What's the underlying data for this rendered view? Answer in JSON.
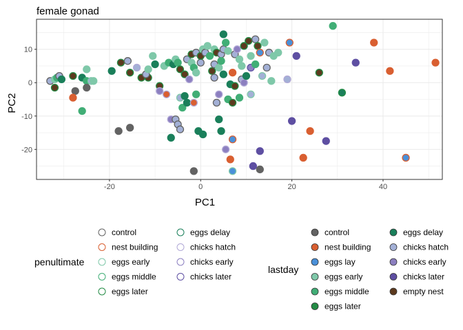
{
  "chart_data": {
    "type": "scatter",
    "title": "female gonad",
    "xlabel": "PC1",
    "ylabel": "PC2",
    "xlim": [
      -36,
      53
    ],
    "ylim": [
      -29,
      19
    ],
    "xticks": [
      -20,
      0,
      20,
      40
    ],
    "yticks": [
      -20,
      -10,
      0,
      10
    ],
    "grid": true,
    "legends": [
      {
        "title": "penultimate",
        "style": "outline",
        "columns": [
          [
            {
              "label": "control",
              "color": "#636363"
            },
            {
              "label": "nest building",
              "color": "#d95f31"
            },
            {
              "label": "eggs early",
              "color": "#7fc8a9"
            },
            {
              "label": "eggs middle",
              "color": "#41ae76"
            },
            {
              "label": "eggs later",
              "color": "#238b45"
            }
          ],
          [
            {
              "label": "eggs delay",
              "color": "#1a7f5a"
            },
            {
              "label": "chicks hatch",
              "color": "#b0a8d6"
            },
            {
              "label": "chicks early",
              "color": "#8c7fc0"
            },
            {
              "label": "chicks later",
              "color": "#5e4fa2"
            }
          ]
        ]
      },
      {
        "title": "lastday",
        "style": "filled",
        "columns": [
          [
            {
              "label": "control",
              "color": "#636363"
            },
            {
              "label": "nest building",
              "color": "#d95f31"
            },
            {
              "label": "eggs lay",
              "color": "#4a90d9"
            },
            {
              "label": "eggs early",
              "color": "#7fc8a9"
            },
            {
              "label": "eggs middle",
              "color": "#41ae76"
            },
            {
              "label": "eggs later",
              "color": "#238b45"
            }
          ],
          [
            {
              "label": "eggs delay",
              "color": "#1a7f5a"
            },
            {
              "label": "chicks hatch",
              "color": "#a3b0d6"
            },
            {
              "label": "chicks early",
              "color": "#8c7fc0"
            },
            {
              "label": "chicks later",
              "color": "#5e4fa2"
            },
            {
              "label": "empty nest",
              "color": "#5c3a1e"
            }
          ]
        ]
      }
    ],
    "points": [
      {
        "x": -33,
        "y": 0.5,
        "fill": "#a3b0d6",
        "stroke": "#636363"
      },
      {
        "x": -32,
        "y": 1,
        "fill": "#7fc8a9",
        "stroke": "#7fc8a9"
      },
      {
        "x": -31.5,
        "y": 1.5,
        "fill": "#41ae76",
        "stroke": "#41ae76"
      },
      {
        "x": -31,
        "y": 2,
        "fill": "#a3b0d6",
        "stroke": "#636363"
      },
      {
        "x": -32,
        "y": -1.5,
        "fill": "#5c3a1e",
        "stroke": "#238b45"
      },
      {
        "x": -30.5,
        "y": 1,
        "fill": "#1a7f5a",
        "stroke": "#1a7f5a"
      },
      {
        "x": -28,
        "y": 2,
        "fill": "#5c3a1e",
        "stroke": "#238b45"
      },
      {
        "x": -27.5,
        "y": -2.5,
        "fill": "#636363",
        "stroke": "#636363"
      },
      {
        "x": -28,
        "y": -4.5,
        "fill": "#d95f31",
        "stroke": "#d95f31"
      },
      {
        "x": -26,
        "y": -8.5,
        "fill": "#41ae76",
        "stroke": "#41ae76"
      },
      {
        "x": -26,
        "y": 1.5,
        "fill": "#1a7f5a",
        "stroke": "#1a7f5a"
      },
      {
        "x": -25,
        "y": 0.5,
        "fill": "#41ae76",
        "stroke": "#41ae76"
      },
      {
        "x": -25,
        "y": -1.5,
        "fill": "#636363",
        "stroke": "#636363"
      },
      {
        "x": -25,
        "y": 4,
        "fill": "#7fc8a9",
        "stroke": "#7fc8a9"
      },
      {
        "x": -24,
        "y": 0.5,
        "fill": "#a3b0d6",
        "stroke": "#7fc8a9"
      },
      {
        "x": -23.5,
        "y": 0.5,
        "fill": "#7fc8a9",
        "stroke": "#7fc8a9"
      },
      {
        "x": -19.5,
        "y": 3.5,
        "fill": "#1a7f5a",
        "stroke": "#1a7f5a"
      },
      {
        "x": -18,
        "y": -14.5,
        "fill": "#636363",
        "stroke": "#636363"
      },
      {
        "x": -17.5,
        "y": 6,
        "fill": "#5c3a1e",
        "stroke": "#238b45"
      },
      {
        "x": -16,
        "y": 6.5,
        "fill": "#a3b0d6",
        "stroke": "#636363"
      },
      {
        "x": -15.5,
        "y": -13.5,
        "fill": "#636363",
        "stroke": "#636363"
      },
      {
        "x": -15.5,
        "y": 3,
        "fill": "#5c3a1e",
        "stroke": "#238b45"
      },
      {
        "x": -14,
        "y": 4.5,
        "fill": "#a3b0d6",
        "stroke": "#b0a8d6"
      },
      {
        "x": -13,
        "y": 1.5,
        "fill": "#5c3a1e",
        "stroke": "#238b45"
      },
      {
        "x": -11.5,
        "y": 1.5,
        "fill": "#5c3a1e",
        "stroke": "#238b45"
      },
      {
        "x": -12,
        "y": 2.5,
        "fill": "#a3b0d6",
        "stroke": "#636363"
      },
      {
        "x": -11.5,
        "y": 4,
        "fill": "#7fc8a9",
        "stroke": "#7fc8a9"
      },
      {
        "x": -10.5,
        "y": 8,
        "fill": "#7fc8a9",
        "stroke": "#7fc8a9"
      },
      {
        "x": -10,
        "y": 5.5,
        "fill": "#1a7f5a",
        "stroke": "#1a7f5a"
      },
      {
        "x": -9,
        "y": -1,
        "fill": "#5c3a1e",
        "stroke": "#238b45"
      },
      {
        "x": -9,
        "y": -2.5,
        "fill": "#8c7fc0",
        "stroke": "#b0a8d6"
      },
      {
        "x": -8,
        "y": 5,
        "fill": "#7fc8a9",
        "stroke": "#7fc8a9"
      },
      {
        "x": -7.5,
        "y": -3.5,
        "fill": "#d95f31",
        "stroke": "#b0a8d6"
      },
      {
        "x": -7,
        "y": 6,
        "fill": "#41ae76",
        "stroke": "#41ae76"
      },
      {
        "x": -6.5,
        "y": -16.5,
        "fill": "#1a7f5a",
        "stroke": "#1a7f5a"
      },
      {
        "x": -6.5,
        "y": -11,
        "fill": "#8c7fc0",
        "stroke": "#b0a8d6"
      },
      {
        "x": -6,
        "y": 5.5,
        "fill": "#1a7f5a",
        "stroke": "#1a7f5a"
      },
      {
        "x": -5.5,
        "y": -11,
        "fill": "#a3b0d6",
        "stroke": "#636363"
      },
      {
        "x": -5.5,
        "y": 7,
        "fill": "#7fc8a9",
        "stroke": "#7fc8a9"
      },
      {
        "x": -5,
        "y": 6,
        "fill": "#41ae76",
        "stroke": "#41ae76"
      },
      {
        "x": -5,
        "y": -12.5,
        "fill": "#a3b0d6",
        "stroke": "#636363"
      },
      {
        "x": -4.5,
        "y": -14,
        "fill": "#a3b0d6",
        "stroke": "#636363"
      },
      {
        "x": -4.5,
        "y": -4.5,
        "fill": "#a3b0d6",
        "stroke": "#7fc8a9"
      },
      {
        "x": -4.5,
        "y": 4,
        "fill": "#5c3a1e",
        "stroke": "#238b45"
      },
      {
        "x": -4,
        "y": -7.5,
        "fill": "#41ae76",
        "stroke": "#41ae76"
      },
      {
        "x": -3.5,
        "y": -4,
        "fill": "#1a7f5a",
        "stroke": "#1a7f5a"
      },
      {
        "x": -3.5,
        "y": 2.5,
        "fill": "#5c3a1e",
        "stroke": "#238b45"
      },
      {
        "x": -3,
        "y": -6,
        "fill": "#1a7f5a",
        "stroke": "#1a7f5a"
      },
      {
        "x": -3,
        "y": 7,
        "fill": "#a3b0d6",
        "stroke": "#636363"
      },
      {
        "x": -2.5,
        "y": 1,
        "fill": "#8c7fc0",
        "stroke": "#b0a8d6"
      },
      {
        "x": -2,
        "y": 6,
        "fill": "#7fc8a9",
        "stroke": "#7fc8a9"
      },
      {
        "x": -2,
        "y": 8.5,
        "fill": "#5c3a1e",
        "stroke": "#238b45"
      },
      {
        "x": -1.5,
        "y": -26.5,
        "fill": "#636363",
        "stroke": "#636363"
      },
      {
        "x": -1.5,
        "y": -6,
        "fill": "#d95f31",
        "stroke": "#b0a8d6"
      },
      {
        "x": -1.5,
        "y": 4.5,
        "fill": "#41ae76",
        "stroke": "#41ae76"
      },
      {
        "x": -1,
        "y": 9,
        "fill": "#a3b0d6",
        "stroke": "#636363"
      },
      {
        "x": -1,
        "y": -3.5,
        "fill": "#41ae76",
        "stroke": "#41ae76"
      },
      {
        "x": -1,
        "y": 3,
        "fill": "#7fc8a9",
        "stroke": "#7fc8a9"
      },
      {
        "x": -0.5,
        "y": -14.5,
        "fill": "#1a7f5a",
        "stroke": "#1a7f5a"
      },
      {
        "x": 0,
        "y": 6,
        "fill": "#a3b0d6",
        "stroke": "#636363"
      },
      {
        "x": 0,
        "y": 8,
        "fill": "#5c3a1e",
        "stroke": "#238b45"
      },
      {
        "x": 0.5,
        "y": 10,
        "fill": "#7fc8a9",
        "stroke": "#7fc8a9"
      },
      {
        "x": 0.5,
        "y": -15.5,
        "fill": "#1a7f5a",
        "stroke": "#1a7f5a"
      },
      {
        "x": 1,
        "y": 9,
        "fill": "#a3b0d6",
        "stroke": "#636363"
      },
      {
        "x": 1.5,
        "y": 11,
        "fill": "#7fc8a9",
        "stroke": "#7fc8a9"
      },
      {
        "x": 2,
        "y": 8,
        "fill": "#41ae76",
        "stroke": "#41ae76"
      },
      {
        "x": 2.5,
        "y": 3.5,
        "fill": "#5c3a1e",
        "stroke": "#238b45"
      },
      {
        "x": 3,
        "y": 10,
        "fill": "#7fc8a9",
        "stroke": "#7fc8a9"
      },
      {
        "x": 3,
        "y": 1.5,
        "fill": "#a3b0d6",
        "stroke": "#636363"
      },
      {
        "x": 3,
        "y": 5.5,
        "fill": "#a3b0d6",
        "stroke": "#636363"
      },
      {
        "x": 3.5,
        "y": -6,
        "fill": "#a3b0d6",
        "stroke": "#636363"
      },
      {
        "x": 3.5,
        "y": 9,
        "fill": "#5c3a1e",
        "stroke": "#238b45"
      },
      {
        "x": 4,
        "y": -11,
        "fill": "#1a7f5a",
        "stroke": "#1a7f5a"
      },
      {
        "x": 4,
        "y": 4.5,
        "fill": "#7fc8a9",
        "stroke": "#7fc8a9"
      },
      {
        "x": 4,
        "y": -3.5,
        "fill": "#8c7fc0",
        "stroke": "#b0a8d6"
      },
      {
        "x": 4.5,
        "y": 8.5,
        "fill": "#a3b0d6",
        "stroke": "#636363"
      },
      {
        "x": 4.5,
        "y": 6.5,
        "fill": "#41ae76",
        "stroke": "#41ae76"
      },
      {
        "x": 4.5,
        "y": -14.5,
        "fill": "#1a7f5a",
        "stroke": "#1a7f5a"
      },
      {
        "x": 5,
        "y": 14.5,
        "fill": "#1a7f5a",
        "stroke": "#1a7f5a"
      },
      {
        "x": 5,
        "y": 2.5,
        "fill": "#1a7f5a",
        "stroke": "#1a7f5a"
      },
      {
        "x": 5,
        "y": 10,
        "fill": "#a3b0d6",
        "stroke": "#636363"
      },
      {
        "x": 5.5,
        "y": 12,
        "fill": "#41ae76",
        "stroke": "#41ae76"
      },
      {
        "x": 5.5,
        "y": -20,
        "fill": "#8c7fc0",
        "stroke": "#b0a8d6"
      },
      {
        "x": 6,
        "y": 9.5,
        "fill": "#7fc8a9",
        "stroke": "#7fc8a9"
      },
      {
        "x": 6,
        "y": -5,
        "fill": "#41ae76",
        "stroke": "#41ae76"
      },
      {
        "x": 6.5,
        "y": -23,
        "fill": "#d95f31",
        "stroke": "#d95f31"
      },
      {
        "x": 6.5,
        "y": -0.5,
        "fill": "#1a7f5a",
        "stroke": "#1a7f5a"
      },
      {
        "x": 7,
        "y": 3,
        "fill": "#d95f31",
        "stroke": "#d95f31"
      },
      {
        "x": 7,
        "y": -6,
        "fill": "#5c3a1e",
        "stroke": "#238b45"
      },
      {
        "x": 7,
        "y": -17,
        "fill": "#4a90d9",
        "stroke": "#d95f31"
      },
      {
        "x": 7,
        "y": -26.5,
        "fill": "#4a90d9",
        "stroke": "#7fc8a9"
      },
      {
        "x": 7.5,
        "y": 8.5,
        "fill": "#a3b0d6",
        "stroke": "#636363"
      },
      {
        "x": 7.5,
        "y": -1,
        "fill": "#5c3a1e",
        "stroke": "#238b45"
      },
      {
        "x": 8,
        "y": 10,
        "fill": "#8c7fc0",
        "stroke": "#b0a8d6"
      },
      {
        "x": 8.5,
        "y": 7,
        "fill": "#7fc8a9",
        "stroke": "#7fc8a9"
      },
      {
        "x": 8.5,
        "y": -4.5,
        "fill": "#41ae76",
        "stroke": "#41ae76"
      },
      {
        "x": 9,
        "y": 1,
        "fill": "#a3b0d6",
        "stroke": "#636363"
      },
      {
        "x": 9,
        "y": 5,
        "fill": "#7fc8a9",
        "stroke": "#7fc8a9"
      },
      {
        "x": 9.5,
        "y": 11,
        "fill": "#5c3a1e",
        "stroke": "#238b45"
      },
      {
        "x": 9.5,
        "y": 0,
        "fill": "#8c7fc0",
        "stroke": "#b0a8d6"
      },
      {
        "x": 10,
        "y": 2,
        "fill": "#1a7f5a",
        "stroke": "#1a7f5a"
      },
      {
        "x": 10.5,
        "y": 12.5,
        "fill": "#5c3a1e",
        "stroke": "#238b45"
      },
      {
        "x": 11,
        "y": 8,
        "fill": "#7fc8a9",
        "stroke": "#7fc8a9"
      },
      {
        "x": 11,
        "y": -3.5,
        "fill": "#a3b0d6",
        "stroke": "#7fc8a9"
      },
      {
        "x": 11,
        "y": 4.5,
        "fill": "#8c7fc0",
        "stroke": "#5e4fa2"
      },
      {
        "x": 11.5,
        "y": -25,
        "fill": "#5e4fa2",
        "stroke": "#5e4fa2"
      },
      {
        "x": 12,
        "y": 13,
        "fill": "#a3b0d6",
        "stroke": "#636363"
      },
      {
        "x": 12,
        "y": 5.5,
        "fill": "#41ae76",
        "stroke": "#41ae76"
      },
      {
        "x": 12.5,
        "y": 11,
        "fill": "#5c3a1e",
        "stroke": "#238b45"
      },
      {
        "x": 13,
        "y": -26,
        "fill": "#636363",
        "stroke": "#636363"
      },
      {
        "x": 13,
        "y": -20.5,
        "fill": "#5e4fa2",
        "stroke": "#5e4fa2"
      },
      {
        "x": 13,
        "y": 9,
        "fill": "#4a90d9",
        "stroke": "#d95f31"
      },
      {
        "x": 13.5,
        "y": 2,
        "fill": "#a3b0d6",
        "stroke": "#7fc8a9"
      },
      {
        "x": 14,
        "y": 12,
        "fill": "#7fc8a9",
        "stroke": "#7fc8a9"
      },
      {
        "x": 14.5,
        "y": 4.5,
        "fill": "#a3b0d6",
        "stroke": "#636363"
      },
      {
        "x": 15,
        "y": 9,
        "fill": "#a3b0d6",
        "stroke": "#636363"
      },
      {
        "x": 15.5,
        "y": 0.5,
        "fill": "#7fc8a9",
        "stroke": "#7fc8a9"
      },
      {
        "x": 16,
        "y": 8,
        "fill": "#7fc8a9",
        "stroke": "#7fc8a9"
      },
      {
        "x": 17,
        "y": 9,
        "fill": "#7fc8a9",
        "stroke": "#7fc8a9"
      },
      {
        "x": 19,
        "y": 1,
        "fill": "#a3b0d6",
        "stroke": "#b0a8d6"
      },
      {
        "x": 19.5,
        "y": 12,
        "fill": "#4a90d9",
        "stroke": "#d95f31"
      },
      {
        "x": 20,
        "y": -11.5,
        "fill": "#5e4fa2",
        "stroke": "#5e4fa2"
      },
      {
        "x": 21,
        "y": 8,
        "fill": "#5e4fa2",
        "stroke": "#5e4fa2"
      },
      {
        "x": 22.5,
        "y": -22.5,
        "fill": "#d95f31",
        "stroke": "#d95f31"
      },
      {
        "x": 24,
        "y": -14.5,
        "fill": "#d95f31",
        "stroke": "#d95f31"
      },
      {
        "x": 26,
        "y": 3,
        "fill": "#5c3a1e",
        "stroke": "#238b45"
      },
      {
        "x": 27.5,
        "y": -17.5,
        "fill": "#5e4fa2",
        "stroke": "#5e4fa2"
      },
      {
        "x": 29,
        "y": 17,
        "fill": "#41ae76",
        "stroke": "#41ae76"
      },
      {
        "x": 31,
        "y": -3,
        "fill": "#1a7f5a",
        "stroke": "#238b45"
      },
      {
        "x": 34,
        "y": 6,
        "fill": "#5e4fa2",
        "stroke": "#5e4fa2"
      },
      {
        "x": 38,
        "y": 12,
        "fill": "#d95f31",
        "stroke": "#d95f31"
      },
      {
        "x": 41.5,
        "y": 3.5,
        "fill": "#d95f31",
        "stroke": "#d95f31"
      },
      {
        "x": 45,
        "y": -22.5,
        "fill": "#4a90d9",
        "stroke": "#d95f31"
      },
      {
        "x": 51.5,
        "y": 6,
        "fill": "#d95f31",
        "stroke": "#d95f31"
      }
    ]
  }
}
